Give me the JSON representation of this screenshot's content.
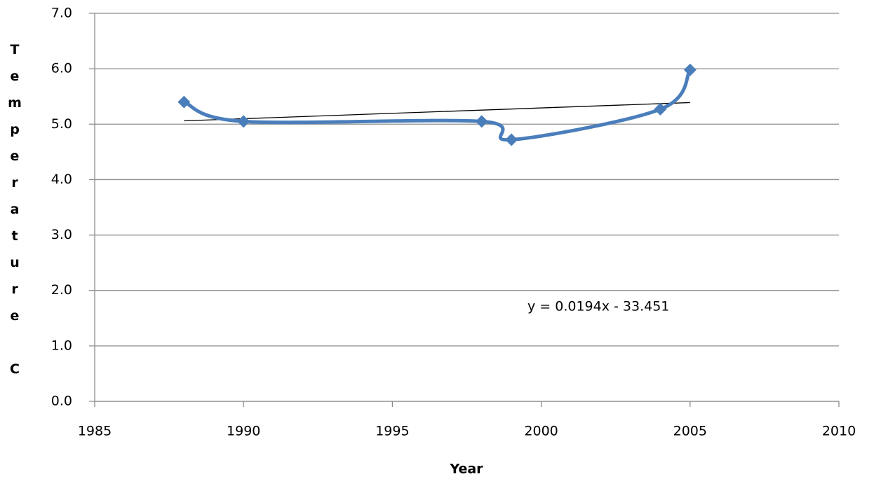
{
  "chart_data": {
    "type": "scatter",
    "xlabel": "Year",
    "ylabel": "Temperature C",
    "series": [
      {
        "x": [
          1988,
          1990,
          1998,
          1999,
          2004,
          2005
        ],
        "values": [
          5.4,
          5.05,
          5.05,
          4.72,
          5.27,
          5.98
        ],
        "color": "#4a7ebb"
      }
    ],
    "trendline": {
      "x": [
        1988,
        2005
      ],
      "values": [
        5.06,
        5.39
      ],
      "color": "#000000"
    },
    "trendline_label": "y = 0.0194x - 33.451",
    "xlim": [
      1985,
      2010
    ],
    "xticks": [
      1985,
      1990,
      1995,
      2000,
      2005,
      2010
    ],
    "ylim": [
      0,
      7
    ],
    "yticks": [
      {
        "value": 0,
        "label": "0.0"
      },
      {
        "value": 1,
        "label": "1.0"
      },
      {
        "value": 2,
        "label": "2.0"
      },
      {
        "value": 3,
        "label": "3.0"
      },
      {
        "value": 4,
        "label": "4.0"
      },
      {
        "value": 5,
        "label": "5.0"
      },
      {
        "value": 6,
        "label": "6.0"
      },
      {
        "value": 7,
        "label": "7.0"
      }
    ],
    "grid": true
  }
}
